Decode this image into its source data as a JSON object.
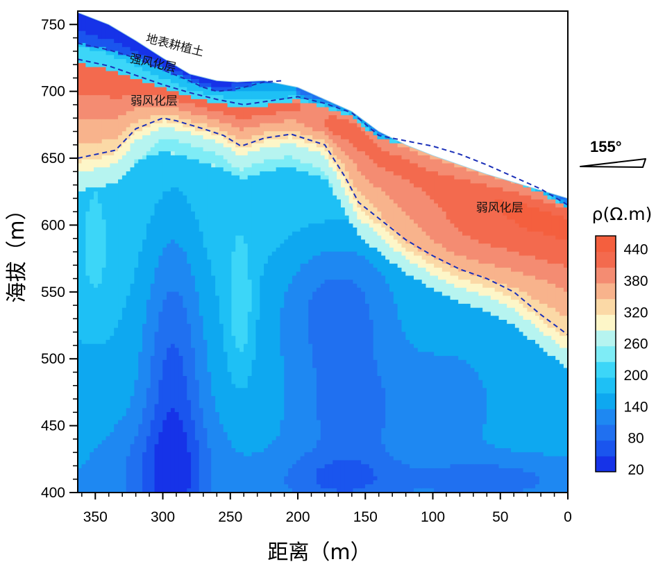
{
  "chart_data": {
    "type": "heatmap",
    "subtype": "resistivity-contour-profile",
    "xlabel": "距离（m）",
    "ylabel": "海拔（m）",
    "x_reversed": true,
    "xlim": [
      363,
      0
    ],
    "ylim": [
      400,
      760
    ],
    "x_ticks": [
      350,
      300,
      250,
      200,
      150,
      100,
      50,
      0
    ],
    "y_ticks": [
      750,
      700,
      650,
      600,
      550,
      500,
      450,
      400
    ],
    "bearing": "155°",
    "colorbar": {
      "title": "ρ(Ω.m)",
      "tick_labels": [
        "440",
        "380",
        "320",
        "260",
        "200",
        "140",
        "80",
        "20"
      ],
      "levels": [
        20,
        50,
        80,
        110,
        140,
        170,
        200,
        230,
        260,
        290,
        320,
        350,
        380,
        410,
        440,
        470
      ],
      "colors": [
        "#1633e8",
        "#1a55ee",
        "#2070f0",
        "#1e88f2",
        "#0ea8f0",
        "#1ec0f5",
        "#3cd6f8",
        "#7eecf6",
        "#b6f4f0",
        "#fdf6c8",
        "#fbd9a6",
        "#f8b38c",
        "#f48c72",
        "#f36a4e",
        "#f45f3e"
      ]
    },
    "surface_profile": {
      "x": [
        363,
        340,
        320,
        300,
        280,
        260,
        245,
        225,
        200,
        180,
        160,
        140,
        120,
        100,
        80,
        60,
        40,
        20,
        0
      ],
      "y": [
        759,
        750,
        738,
        725,
        713,
        708,
        707,
        708,
        703,
        694,
        685,
        670,
        660,
        652,
        645,
        638,
        632,
        626,
        620
      ]
    },
    "dashed_boundaries": [
      {
        "name": "地表耕植土 / 强风化层 boundary",
        "x": [
          363,
          340,
          320,
          300,
          285,
          270,
          260,
          250,
          240,
          225,
          210
        ],
        "y": [
          736,
          731,
          725,
          716,
          710,
          703,
          700,
          701,
          703,
          707,
          708
        ]
      },
      {
        "name": "强风化层 / 弱风化层 boundary",
        "x": [
          363,
          340,
          320,
          300,
          280,
          260,
          240,
          220,
          200,
          180,
          160,
          140,
          120,
          100,
          80,
          60,
          40,
          20,
          0
        ],
        "y": [
          724,
          719,
          712,
          705,
          699,
          694,
          690,
          693,
          696,
          691,
          684,
          667,
          663,
          659,
          653,
          645,
          636,
          627,
          615
        ]
      },
      {
        "name": "弱风化层 lower boundary",
        "x": [
          363,
          335,
          320,
          300,
          290,
          270,
          255,
          242,
          225,
          205,
          180,
          165,
          155,
          140,
          120,
          100,
          80,
          60,
          40,
          20,
          0
        ],
        "y": [
          650,
          656,
          672,
          680,
          678,
          672,
          667,
          659,
          665,
          668,
          660,
          636,
          617,
          605,
          589,
          577,
          567,
          560,
          550,
          533,
          518
        ]
      }
    ],
    "annotations": [
      {
        "text": "地表耕植土",
        "x": 313,
        "y": 737,
        "rotate_deg": 14
      },
      {
        "text": "强风化层",
        "x": 325,
        "y": 722,
        "rotate_deg": 12
      },
      {
        "text": "弱风化层",
        "x": 324,
        "y": 690,
        "rotate_deg": 0
      },
      {
        "text": "弱风化层",
        "x": 68,
        "y": 610,
        "rotate_deg": 0
      }
    ]
  }
}
